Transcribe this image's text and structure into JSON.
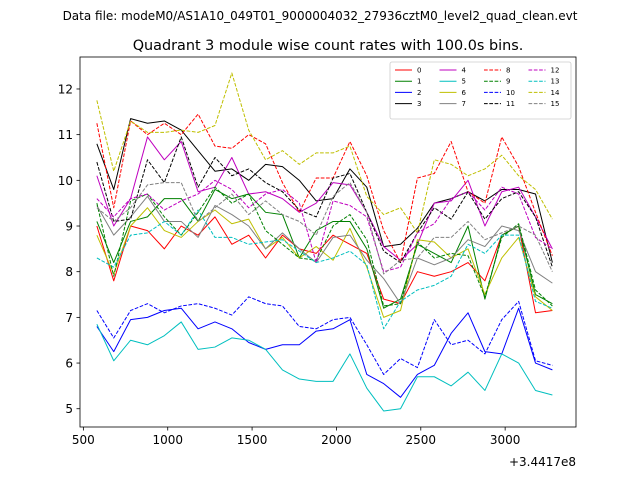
{
  "chart_data": {
    "type": "line",
    "suptitle": "Data file: modeM0/AS1A10_049T01_9000004032_27936cztM0_level2_quad_clean.evt",
    "title": "Quadrant 3 module wise count rates with 100.0s bins.",
    "xlabel": "",
    "ylabel": "",
    "offset_label": "+3.4417e8",
    "xlim": [
      480,
      3420
    ],
    "ylim": [
      4.6,
      12.7
    ],
    "xticks": [
      500,
      1000,
      1500,
      2000,
      2500,
      3000
    ],
    "yticks": [
      5,
      6,
      7,
      8,
      9,
      10,
      11,
      12
    ],
    "legend_position": "upper right",
    "legend_columns": 4,
    "x": [
      580,
      680,
      780,
      880,
      980,
      1080,
      1180,
      1280,
      1380,
      1480,
      1580,
      1680,
      1780,
      1880,
      1980,
      2080,
      2180,
      2280,
      2380,
      2480,
      2580,
      2680,
      2780,
      2880,
      2980,
      3080,
      3180,
      3280
    ],
    "series": [
      {
        "name": "0",
        "color": "#ff0000",
        "dash": "solid",
        "values": [
          9.0,
          7.8,
          9.0,
          8.9,
          8.5,
          9.0,
          8.8,
          9.2,
          8.6,
          8.8,
          8.3,
          8.8,
          8.5,
          8.4,
          8.8,
          8.6,
          8.4,
          7.4,
          7.3,
          8.0,
          7.9,
          8.0,
          8.2,
          7.8,
          8.8,
          9.0,
          7.1,
          7.15
        ]
      },
      {
        "name": "1",
        "color": "#008000",
        "dash": "solid",
        "values": [
          9.1,
          8.2,
          9.1,
          9.2,
          9.6,
          9.6,
          9.1,
          9.8,
          9.6,
          9.7,
          9.3,
          9.25,
          8.3,
          8.9,
          9.1,
          9.1,
          8.5,
          7.2,
          7.4,
          8.6,
          8.4,
          8.2,
          9.0,
          7.4,
          8.8,
          9.0,
          7.5,
          7.3
        ]
      },
      {
        "name": "2",
        "color": "#0000ff",
        "dash": "solid",
        "values": [
          6.8,
          6.25,
          6.95,
          7.0,
          7.15,
          7.2,
          6.75,
          6.9,
          6.75,
          6.45,
          6.3,
          6.4,
          6.4,
          6.7,
          6.75,
          6.95,
          5.75,
          5.55,
          5.25,
          5.75,
          5.95,
          6.65,
          7.1,
          6.25,
          6.2,
          7.2,
          6.0,
          5.85
        ]
      },
      {
        "name": "3",
        "color": "#000000",
        "dash": "solid",
        "values": [
          10.8,
          9.8,
          11.35,
          11.25,
          11.3,
          11.1,
          10.65,
          10.2,
          10.25,
          10.0,
          10.35,
          10.3,
          10.0,
          9.55,
          9.6,
          10.25,
          9.85,
          8.55,
          8.6,
          8.95,
          9.5,
          9.6,
          9.75,
          9.55,
          9.8,
          9.8,
          9.7,
          8.2
        ]
      },
      {
        "name": "4",
        "color": "#bf00bf",
        "dash": "solid",
        "values": [
          10.1,
          9.0,
          9.6,
          10.95,
          10.45,
          10.85,
          9.75,
          9.85,
          10.5,
          9.7,
          9.75,
          9.6,
          9.3,
          9.5,
          9.95,
          9.9,
          9.3,
          8.55,
          8.25,
          8.6,
          9.5,
          9.55,
          10.0,
          9.0,
          9.75,
          9.85,
          9.2,
          8.5
        ]
      },
      {
        "name": "5",
        "color": "#00bfbf",
        "dash": "solid",
        "values": [
          6.85,
          6.05,
          6.5,
          6.4,
          6.6,
          6.9,
          6.3,
          6.35,
          6.55,
          6.5,
          6.3,
          5.85,
          5.65,
          5.6,
          5.6,
          6.2,
          5.45,
          4.95,
          5.0,
          5.7,
          5.7,
          5.5,
          5.8,
          5.4,
          6.2,
          6.0,
          5.4,
          5.3
        ]
      },
      {
        "name": "6",
        "color": "#bfbf00",
        "dash": "solid",
        "values": [
          8.8,
          7.95,
          9.0,
          9.4,
          8.9,
          8.75,
          9.1,
          9.35,
          9.05,
          9.15,
          8.5,
          8.75,
          8.3,
          8.55,
          8.25,
          8.95,
          8.1,
          7.0,
          7.15,
          8.7,
          8.65,
          8.3,
          8.5,
          7.5,
          8.3,
          8.75,
          7.45,
          7.15
        ]
      },
      {
        "name": "7",
        "color": "#808080",
        "dash": "solid",
        "values": [
          9.45,
          8.8,
          9.2,
          9.65,
          9.1,
          9.1,
          8.75,
          9.45,
          9.25,
          9.0,
          8.5,
          8.85,
          8.5,
          8.2,
          8.75,
          8.8,
          8.25,
          7.85,
          7.3,
          8.3,
          8.15,
          8.3,
          8.7,
          8.55,
          9.0,
          8.9,
          8.0,
          7.75
        ]
      },
      {
        "name": "8",
        "color": "#ff0000",
        "dash": "dashed",
        "values": [
          11.25,
          9.4,
          11.3,
          11.0,
          11.25,
          11.0,
          11.45,
          10.75,
          10.7,
          11.0,
          10.8,
          9.95,
          9.3,
          10.05,
          10.05,
          10.85,
          10.1,
          8.9,
          8.2,
          10.05,
          10.15,
          10.85,
          9.75,
          9.5,
          10.95,
          10.3,
          9.3,
          8.35
        ]
      },
      {
        "name": "9",
        "color": "#008000",
        "dash": "dashed",
        "values": [
          9.5,
          7.9,
          9.55,
          9.7,
          9.2,
          8.8,
          9.3,
          9.85,
          9.5,
          9.7,
          8.9,
          8.6,
          8.3,
          8.25,
          9.0,
          9.25,
          8.7,
          7.25,
          7.3,
          8.65,
          8.3,
          8.4,
          8.35,
          7.45,
          8.75,
          9.05,
          7.6,
          7.25
        ]
      },
      {
        "name": "10",
        "color": "#0000ff",
        "dash": "dashed",
        "values": [
          7.15,
          6.55,
          7.15,
          7.3,
          7.1,
          7.25,
          7.3,
          7.2,
          7.05,
          7.45,
          7.3,
          7.25,
          6.8,
          6.75,
          6.95,
          7.0,
          6.4,
          5.75,
          6.1,
          5.9,
          6.95,
          6.4,
          6.5,
          6.2,
          6.95,
          7.35,
          6.05,
          5.95
        ]
      },
      {
        "name": "11",
        "color": "#000000",
        "dash": "dashed",
        "values": [
          10.4,
          9.1,
          9.15,
          10.45,
          9.95,
          10.95,
          9.85,
          10.5,
          10.1,
          10.25,
          9.95,
          9.75,
          9.35,
          9.2,
          10.05,
          10.15,
          9.3,
          8.45,
          8.2,
          8.85,
          9.4,
          9.15,
          9.75,
          9.15,
          9.6,
          9.75,
          9.2,
          8.1
        ]
      },
      {
        "name": "12",
        "color": "#bf00bf",
        "dash": "dashed",
        "values": [
          9.6,
          9.2,
          9.6,
          9.7,
          9.35,
          9.55,
          9.7,
          10.0,
          9.8,
          9.4,
          9.7,
          9.8,
          9.5,
          8.2,
          9.55,
          9.45,
          9.2,
          8.0,
          8.1,
          8.85,
          9.05,
          9.6,
          9.75,
          9.35,
          9.85,
          9.7,
          8.75,
          8.5
        ]
      },
      {
        "name": "13",
        "color": "#00bfbf",
        "dash": "dashed",
        "values": [
          8.3,
          8.1,
          8.8,
          8.85,
          9.1,
          8.8,
          9.35,
          8.75,
          8.75,
          8.6,
          8.65,
          8.7,
          8.45,
          8.2,
          8.3,
          8.45,
          8.15,
          6.75,
          7.35,
          7.6,
          7.7,
          7.9,
          8.6,
          8.4,
          8.8,
          8.8,
          7.35,
          7.2
        ]
      },
      {
        "name": "14",
        "color": "#bfbf00",
        "dash": "dashed",
        "values": [
          11.75,
          10.2,
          11.3,
          11.05,
          11.05,
          11.1,
          11.05,
          11.2,
          12.35,
          11.1,
          10.45,
          10.65,
          10.35,
          10.6,
          10.6,
          10.75,
          9.65,
          9.25,
          9.4,
          8.85,
          10.45,
          10.35,
          10.1,
          10.25,
          10.55,
          10.1,
          9.8,
          9.15
        ]
      },
      {
        "name": "15",
        "color": "#808080",
        "dash": "dashed",
        "values": [
          9.4,
          9.1,
          9.4,
          9.9,
          9.95,
          9.95,
          9.1,
          9.4,
          9.7,
          9.25,
          9.55,
          9.25,
          9.1,
          8.8,
          9.65,
          9.95,
          9.3,
          7.95,
          8.25,
          8.3,
          8.75,
          8.75,
          9.1,
          8.7,
          8.85,
          9.0,
          8.8,
          8.0
        ]
      }
    ]
  }
}
